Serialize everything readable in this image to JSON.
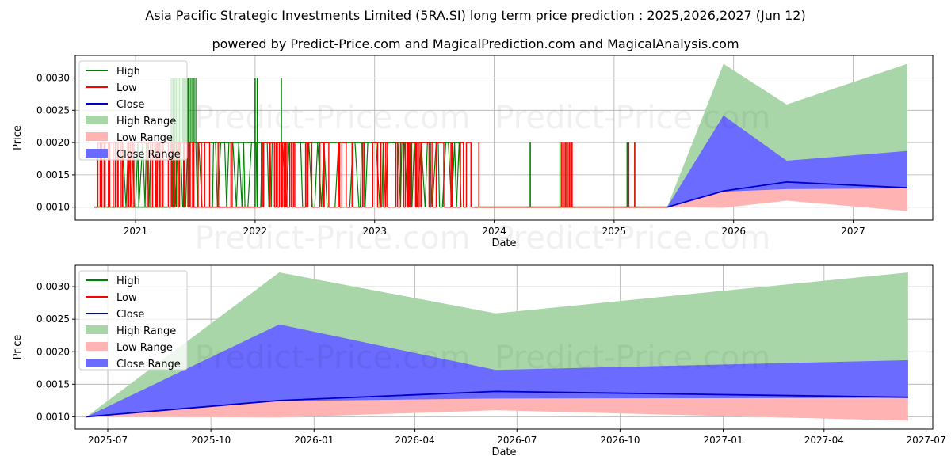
{
  "page": {
    "title": "Asia Pacific Strategic Investments Limited (5RA.SI) long term price prediction : 2025,2026,2027 (Jun 12)",
    "subtitle": "powered by Predict-Price.com and MagicalPrediction.com and MagicalAnalysis.com",
    "watermark": "Predict-Price.com"
  },
  "colors": {
    "high": "#008000",
    "low": "#ff0000",
    "close": "#0000cc",
    "high_range": "#a9d6a9",
    "low_range": "#ffb3b3",
    "close_range": "#6b6bff"
  },
  "legend_labels": [
    "High",
    "Low",
    "Close",
    "High Range",
    "Low Range",
    "Close Range"
  ],
  "chart_data": [
    {
      "type": "line",
      "xlabel": "Date",
      "ylabel": "Price",
      "xlim": [
        "2020-07-01",
        "2027-09-01"
      ],
      "ylim": [
        0.0008,
        0.00335
      ],
      "x_ticks": [
        "2021-01-01",
        "2022-01-01",
        "2023-01-01",
        "2024-01-01",
        "2025-01-01",
        "2026-01-01",
        "2027-01-01"
      ],
      "x_tick_labels": [
        "2021",
        "2022",
        "2023",
        "2024",
        "2025",
        "2026",
        "2027"
      ],
      "y_ticks": [
        0.001,
        0.0015,
        0.002,
        0.0025,
        0.003
      ],
      "y_tick_labels": [
        "0.0010",
        "0.0015",
        "0.0020",
        "0.0025",
        "0.0030"
      ],
      "grid": true,
      "legend": "top-left",
      "history": {
        "high_default": 0.002,
        "low_default": 0.001,
        "high_segments": [
          {
            "start": "2020-08-28",
            "end": "2021-04-15",
            "value": 0.001
          },
          {
            "start": "2021-07-01",
            "end": "2022-06-01",
            "value": 0.002
          },
          {
            "start": "2022-06-01",
            "end": "2023-09-30",
            "value": 0.002
          },
          {
            "start": "2023-11-01",
            "end": "2025-06-12",
            "value": 0.001
          }
        ],
        "high_spikes": [
          {
            "date": "2021-04-25",
            "value": 0.003
          },
          {
            "date": "2021-05-05",
            "value": 0.003
          },
          {
            "date": "2021-05-15",
            "value": 0.003
          },
          {
            "date": "2021-05-28",
            "value": 0.003
          },
          {
            "date": "2021-06-10",
            "value": 0.003
          },
          {
            "date": "2021-06-25",
            "value": 0.003
          },
          {
            "date": "2022-01-01",
            "value": 0.003
          },
          {
            "date": "2022-01-08",
            "value": 0.003
          },
          {
            "date": "2022-03-22",
            "value": 0.003
          },
          {
            "date": "2024-04-20",
            "value": 0.002
          },
          {
            "date": "2024-07-20",
            "value": 0.002
          },
          {
            "date": "2024-08-10",
            "value": 0.002
          },
          {
            "date": "2024-08-25",
            "value": 0.002
          },
          {
            "date": "2025-02-10",
            "value": 0.002
          },
          {
            "date": "2025-03-05",
            "value": 0.002
          }
        ],
        "low_bands": [
          {
            "start": "2020-09-01",
            "end": "2021-06-20",
            "value": 0.002
          },
          {
            "start": "2022-01-01",
            "end": "2022-05-01",
            "value": 0.002
          },
          {
            "start": "2023-01-01",
            "end": "2023-07-01",
            "value": 0.002
          },
          {
            "start": "2024-07-25",
            "end": "2024-08-30",
            "value": 0.002
          }
        ],
        "low_flat_segments": [
          {
            "start": "2021-06-20",
            "end": "2021-12-31",
            "value": 0.001
          },
          {
            "start": "2023-11-20",
            "end": "2025-06-12",
            "value": 0.001
          }
        ]
      },
      "forecast": {
        "dates": [
          "2025-06-12",
          "2025-12-01",
          "2026-06-12",
          "2027-06-15"
        ],
        "high_range_upper": [
          0.001,
          0.00322,
          0.00259,
          0.00322
        ],
        "high_range_lower": [
          0.001,
          0.00128,
          0.00128,
          0.00129
        ],
        "close_range_upper": [
          0.001,
          0.00242,
          0.00172,
          0.00187
        ],
        "close_range_lower": [
          0.001,
          0.00124,
          0.00128,
          0.00129
        ],
        "low_range_upper": [
          0.001,
          0.00124,
          0.00138,
          0.0013
        ],
        "low_range_lower": [
          0.001,
          0.00099,
          0.0011,
          0.00094
        ],
        "close": [
          0.001,
          0.00125,
          0.00139,
          0.0013
        ]
      }
    },
    {
      "type": "area",
      "xlabel": "Date",
      "ylabel": "Price",
      "xlim": [
        "2025-06-02",
        "2027-07-07"
      ],
      "ylim": [
        0.00081,
        0.00333
      ],
      "x_ticks": [
        "2025-07-01",
        "2025-10-01",
        "2026-01-01",
        "2026-04-01",
        "2026-07-01",
        "2026-10-01",
        "2027-01-01",
        "2027-04-01",
        "2027-07-01"
      ],
      "x_tick_labels": [
        "2025-07",
        "2025-10",
        "2026-01",
        "2026-04",
        "2026-07",
        "2026-10",
        "2027-01",
        "2027-04",
        "2027-07"
      ],
      "y_ticks": [
        0.001,
        0.0015,
        0.002,
        0.0025,
        0.003
      ],
      "y_tick_labels": [
        "0.0010",
        "0.0015",
        "0.0020",
        "0.0025",
        "0.0030"
      ],
      "grid": true,
      "legend": "top-left"
    }
  ]
}
